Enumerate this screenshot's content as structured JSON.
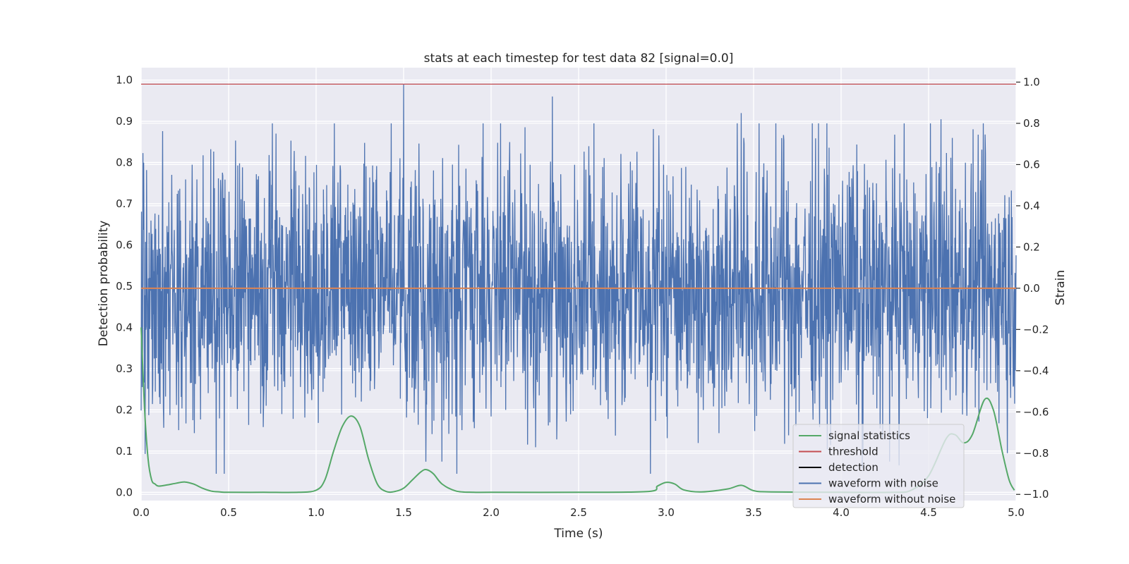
{
  "chart_data": {
    "type": "line",
    "title": "stats at each timestep for test data 82 [signal=0.0]",
    "xlabel": "Time (s)",
    "ylabel": "Detection probability",
    "ylabel_right": "Strain",
    "xlim": [
      0.0,
      5.0
    ],
    "ylim": [
      -0.02,
      1.03
    ],
    "ylim_right": [
      -1.03,
      1.07
    ],
    "grid": true,
    "legend_position": "lower-right",
    "x_ticks": [
      "0.0",
      "0.5",
      "1.0",
      "1.5",
      "2.0",
      "2.5",
      "3.0",
      "3.5",
      "4.0",
      "4.5",
      "5.0"
    ],
    "y_ticks": [
      "0.0",
      "0.1",
      "0.2",
      "0.3",
      "0.4",
      "0.5",
      "0.6",
      "0.7",
      "0.8",
      "0.9",
      "1.0"
    ],
    "y_right_ticks": [
      "−1.0",
      "−0.8",
      "−0.6",
      "−0.4",
      "−0.2",
      "0.0",
      "0.2",
      "0.4",
      "0.6",
      "0.8",
      "1.0"
    ],
    "legend": [
      {
        "label": "signal statistics",
        "color": "#55a868"
      },
      {
        "label": "threshold",
        "color": "#c44e52"
      },
      {
        "label": "detection",
        "color": "#000000"
      },
      {
        "label": "waveform with noise",
        "color": "#4c72b0"
      },
      {
        "label": "waveform without noise",
        "color": "#dd8452"
      }
    ],
    "threshold": 0.99,
    "waveform_without_noise": 0.0,
    "waveform_with_noise": {
      "axis": "right",
      "description_range": [
        -0.92,
        0.99
      ],
      "peaks": [
        [
          1.5,
          0.99
        ],
        [
          2.35,
          0.93
        ],
        [
          3.43,
          0.85
        ],
        [
          4.57,
          0.82
        ],
        [
          0.77,
          0.75
        ]
      ]
    },
    "series": [
      {
        "name": "signal statistics",
        "axis": "left",
        "x": [
          0.0,
          0.02,
          0.04,
          0.06,
          0.08,
          0.1,
          0.15,
          0.2,
          0.25,
          0.3,
          0.35,
          0.4,
          0.45,
          0.5,
          0.7,
          0.9,
          1.0,
          1.05,
          1.1,
          1.15,
          1.2,
          1.25,
          1.3,
          1.35,
          1.4,
          1.45,
          1.5,
          1.55,
          1.6,
          1.63,
          1.67,
          1.72,
          1.8,
          1.9,
          2.0,
          2.5,
          2.9,
          2.95,
          3.0,
          3.05,
          3.1,
          3.2,
          3.35,
          3.43,
          3.5,
          3.6,
          4.0,
          4.3,
          4.4,
          4.5,
          4.6,
          4.65,
          4.7,
          4.75,
          4.82,
          4.87,
          4.92,
          4.96,
          4.99
        ],
        "y": [
          0.4,
          0.2,
          0.08,
          0.03,
          0.02,
          0.015,
          0.018,
          0.022,
          0.025,
          0.02,
          0.01,
          0.003,
          0.001,
          0.0,
          0.0,
          0.0,
          0.005,
          0.03,
          0.1,
          0.16,
          0.185,
          0.16,
          0.08,
          0.02,
          0.002,
          0.002,
          0.01,
          0.03,
          0.05,
          0.055,
          0.045,
          0.02,
          0.003,
          0.0,
          0.0,
          0.0,
          0.002,
          0.015,
          0.024,
          0.02,
          0.006,
          0.001,
          0.008,
          0.017,
          0.004,
          0.001,
          0.0,
          0.0,
          0.005,
          0.04,
          0.13,
          0.14,
          0.12,
          0.14,
          0.225,
          0.2,
          0.1,
          0.03,
          0.005
        ]
      }
    ]
  }
}
